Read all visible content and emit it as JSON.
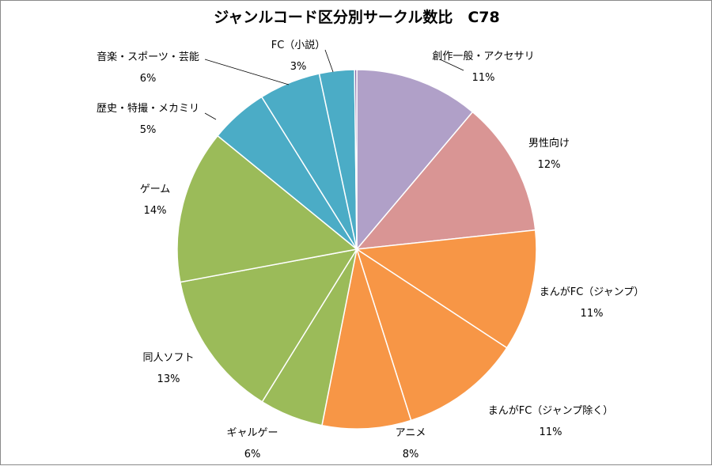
{
  "chart_data": {
    "type": "pie",
    "title": "ジャンルコード区分別サークル数比　C78",
    "start_angle_deg": 0,
    "direction": "clockwise",
    "legend": "none",
    "slices": [
      {
        "name": "創作一般・アクセサリ",
        "value": 11.3,
        "label": "11%",
        "color": "#b0a0c8"
      },
      {
        "name": "男性向け",
        "value": 12.3,
        "label": "12%",
        "color": "#d99594"
      },
      {
        "name": "まんがFC（ジャンプ）",
        "value": 11.1,
        "label": "11%",
        "color": "#f79646"
      },
      {
        "name": "まんがFC（ジャンプ除く）",
        "value": 11.0,
        "label": "11%",
        "color": "#f79646"
      },
      {
        "name": "アニメ",
        "value": 8.1,
        "label": "8%",
        "color": "#f79646"
      },
      {
        "name": "ギャルゲー",
        "value": 5.8,
        "label": "6%",
        "color": "#9bbb59"
      },
      {
        "name": "同人ソフト",
        "value": 13.4,
        "label": "13%",
        "color": "#9bbb59"
      },
      {
        "name": "ゲーム",
        "value": 14.0,
        "label": "14%",
        "color": "#9bbb59"
      },
      {
        "name": "歴史・特撮・メカミリ",
        "value": 5.3,
        "label": "5%",
        "color": "#4bacc6"
      },
      {
        "name": "音楽・スポーツ・芸能",
        "value": 5.6,
        "label": "6%",
        "color": "#4bacc6"
      },
      {
        "name": "FC（小説）",
        "value": 3.2,
        "label": "3%",
        "color": "#4bacc6"
      },
      {
        "name": "",
        "value": 0.2,
        "label": "",
        "color": "#8064a2"
      }
    ]
  }
}
